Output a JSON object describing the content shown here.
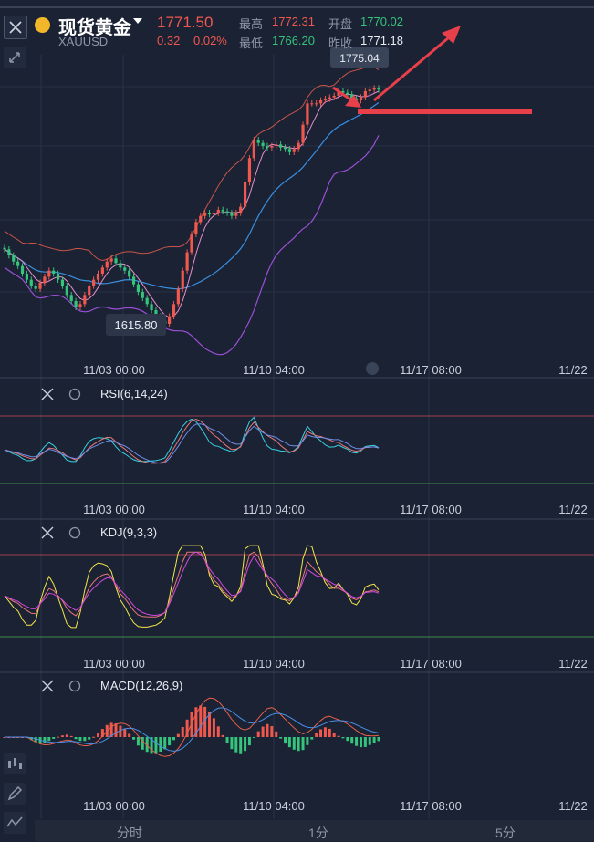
{
  "header": {
    "symbol_name": "现货黄金",
    "symbol_code": "XAUUSD",
    "last_price": "1771.50",
    "change": "0.32",
    "change_pct": "0.02%",
    "high_label": "最高",
    "high": "1772.31",
    "low_label": "最低",
    "low": "1766.20",
    "open_label": "开盘",
    "open": "1770.02",
    "prev_close_label": "昨收",
    "prev_close": "1771.18"
  },
  "price_callouts": {
    "high": "1775.04",
    "low": "1615.80"
  },
  "x_ticks": [
    "11/03 00:00",
    "11/10 04:00",
    "11/17 08:00",
    "11/22"
  ],
  "indicators": {
    "rsi": {
      "label": "RSI(6,14,24)"
    },
    "kdj": {
      "label": "KDJ(9,3,3)"
    },
    "macd": {
      "label": "MACD(12,26,9)"
    }
  },
  "tabs": [
    "分时",
    "1分",
    "5分"
  ],
  "colors": {
    "background": "#1a2233",
    "up": "#f0584e",
    "down": "#34c47c",
    "accent_red": "#e8404a",
    "boll_upper": "#c9554a",
    "boll_mid": "#3a8fe0",
    "boll_lower": "#9b4fd6",
    "ma_short": "#e88fd0",
    "kdj_k": "#f5e84a",
    "kdj_d": "#e87878",
    "kdj_j": "#d04be0",
    "rsi6": "#38d1e0",
    "rsi14": "#e87878",
    "rsi24": "#6f8fe8",
    "macd_dif": "#e8604a",
    "macd_dea": "#4a8fe8"
  },
  "chart_data": {
    "type": "candlestick",
    "symbol": "XAUUSD",
    "annotations": [
      "1775.04",
      "1615.80"
    ],
    "close": [
      1666,
      1662,
      1658,
      1655,
      1650,
      1646,
      1642,
      1640,
      1644,
      1648,
      1652,
      1650,
      1646,
      1642,
      1636,
      1632,
      1628,
      1630,
      1636,
      1642,
      1646,
      1650,
      1654,
      1658,
      1660,
      1657,
      1654,
      1652,
      1648,
      1643,
      1638,
      1634,
      1630,
      1626,
      1622,
      1619,
      1617,
      1622,
      1630,
      1640,
      1652,
      1664,
      1676,
      1684,
      1688,
      1690,
      1689,
      1690,
      1692,
      1691,
      1690,
      1688,
      1690,
      1694,
      1710,
      1726,
      1738,
      1736,
      1734,
      1733,
      1734,
      1735,
      1733,
      1732,
      1730,
      1732,
      1736,
      1748,
      1762,
      1762,
      1762,
      1764,
      1765,
      1766,
      1767,
      1770,
      1769,
      1768,
      1765,
      1764,
      1766,
      1770,
      1771,
      1772,
      1771
    ]
  }
}
